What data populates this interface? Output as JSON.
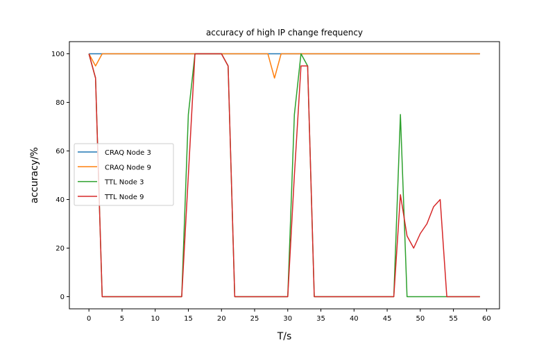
{
  "chart_data": {
    "type": "line",
    "title": "accuracy of high IP change frequency",
    "xlabel": "T/s",
    "ylabel": "accuracy/%",
    "xlim": [
      -2.95,
      61.95
    ],
    "ylim": [
      -5,
      105
    ],
    "xticks": [
      0,
      5,
      10,
      15,
      20,
      25,
      30,
      35,
      40,
      45,
      50,
      55,
      60
    ],
    "yticks": [
      0,
      20,
      40,
      60,
      80,
      100
    ],
    "grid": false,
    "legend_position": "center-left",
    "x": [
      0,
      1,
      2,
      3,
      4,
      5,
      6,
      7,
      8,
      9,
      10,
      11,
      12,
      13,
      14,
      15,
      16,
      17,
      18,
      19,
      20,
      21,
      22,
      23,
      24,
      25,
      26,
      27,
      28,
      29,
      30,
      31,
      32,
      33,
      34,
      35,
      36,
      37,
      38,
      39,
      40,
      41,
      42,
      43,
      44,
      45,
      46,
      47,
      48,
      49,
      50,
      51,
      52,
      53,
      54,
      55,
      56,
      57,
      58,
      59
    ],
    "series": [
      {
        "name": "CRAQ Node 3",
        "color": "#1f77b4",
        "values": [
          100,
          100,
          100,
          100,
          100,
          100,
          100,
          100,
          100,
          100,
          100,
          100,
          100,
          100,
          100,
          100,
          100,
          100,
          100,
          100,
          100,
          100,
          100,
          100,
          100,
          100,
          100,
          100,
          100,
          100,
          100,
          100,
          100,
          100,
          100,
          100,
          100,
          100,
          100,
          100,
          100,
          100,
          100,
          100,
          100,
          100,
          100,
          100,
          100,
          100,
          100,
          100,
          100,
          100,
          100,
          100,
          100,
          100,
          100,
          100
        ]
      },
      {
        "name": "CRAQ Node 9",
        "color": "#ff7f0e",
        "values": [
          100,
          95,
          100,
          100,
          100,
          100,
          100,
          100,
          100,
          100,
          100,
          100,
          100,
          100,
          100,
          100,
          100,
          100,
          100,
          100,
          100,
          100,
          100,
          100,
          100,
          100,
          100,
          100,
          90,
          100,
          100,
          100,
          100,
          100,
          100,
          100,
          100,
          100,
          100,
          100,
          100,
          100,
          100,
          100,
          100,
          100,
          100,
          100,
          100,
          100,
          100,
          100,
          100,
          100,
          100,
          100,
          100,
          100,
          100,
          100
        ]
      },
      {
        "name": "TTL Node 3",
        "color": "#2ca02c",
        "values": [
          100,
          90,
          0,
          0,
          0,
          0,
          0,
          0,
          0,
          0,
          0,
          0,
          0,
          0,
          0,
          75,
          100,
          100,
          100,
          100,
          100,
          95,
          0,
          0,
          0,
          0,
          0,
          0,
          0,
          0,
          0,
          75,
          100,
          95,
          0,
          0,
          0,
          0,
          0,
          0,
          0,
          0,
          0,
          0,
          0,
          0,
          0,
          75,
          0,
          0,
          0,
          0,
          0,
          0,
          0,
          0,
          0,
          0,
          0,
          0
        ]
      },
      {
        "name": "TTL Node 9",
        "color": "#d62728",
        "values": [
          100,
          90,
          0,
          0,
          0,
          0,
          0,
          0,
          0,
          0,
          0,
          0,
          0,
          0,
          0,
          50,
          100,
          100,
          100,
          100,
          100,
          95,
          0,
          0,
          0,
          0,
          0,
          0,
          0,
          0,
          0,
          50,
          95,
          95,
          0,
          0,
          0,
          0,
          0,
          0,
          0,
          0,
          0,
          0,
          0,
          0,
          0,
          42,
          25,
          20,
          26,
          30,
          37,
          40,
          0,
          0,
          0,
          0,
          0,
          0
        ]
      }
    ]
  }
}
